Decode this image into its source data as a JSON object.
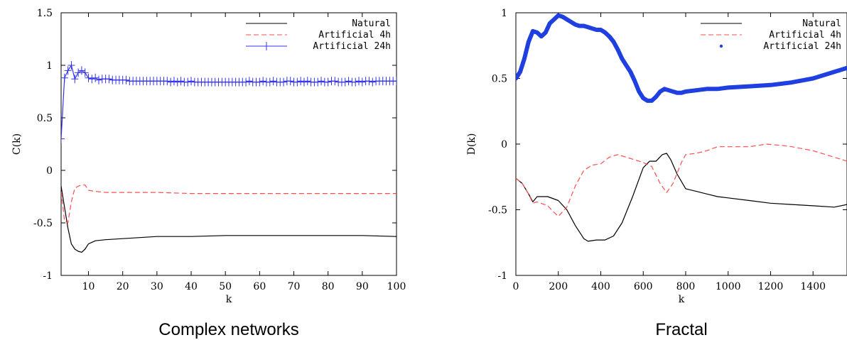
{
  "chart_data": [
    {
      "type": "line",
      "caption": "Complex networks",
      "xlabel": "k",
      "ylabel": "C(k)",
      "xlim": [
        2,
        100
      ],
      "ylim": [
        -1,
        1.5
      ],
      "xticks": [
        "10",
        "20",
        "30",
        "40",
        "50",
        "60",
        "70",
        "80",
        "90",
        "100"
      ],
      "yticks": [
        "-1",
        "-0.5",
        "0",
        "0.5",
        "1",
        "1.5"
      ],
      "grid": false,
      "legend_position": "top-right",
      "series": [
        {
          "name": "Natural",
          "color": "#000000",
          "style": "solid",
          "x": [
            2,
            3,
            4,
            5,
            6,
            7,
            8,
            9,
            10,
            12,
            15,
            20,
            25,
            30,
            40,
            50,
            60,
            70,
            80,
            90,
            100
          ],
          "y": [
            -0.15,
            -0.35,
            -0.55,
            -0.7,
            -0.75,
            -0.77,
            -0.78,
            -0.75,
            -0.7,
            -0.67,
            -0.66,
            -0.65,
            -0.64,
            -0.63,
            -0.63,
            -0.62,
            -0.62,
            -0.62,
            -0.62,
            -0.62,
            -0.63
          ]
        },
        {
          "name": "Artificial 4h",
          "color": "#ff4d4d",
          "style": "dashed",
          "x": [
            2,
            3,
            4,
            5,
            6,
            7,
            8,
            9,
            10,
            12,
            15,
            20,
            30,
            40,
            50,
            60,
            70,
            80,
            90,
            100
          ],
          "y": [
            -0.2,
            -0.48,
            -0.5,
            -0.3,
            -0.17,
            -0.15,
            -0.14,
            -0.14,
            -0.19,
            -0.2,
            -0.21,
            -0.21,
            -0.21,
            -0.22,
            -0.22,
            -0.22,
            -0.22,
            -0.22,
            -0.22,
            -0.22
          ]
        },
        {
          "name": "Artificial 24h",
          "color": "#3333ee",
          "style": "solid-plus-markers",
          "x": [
            2,
            3,
            4,
            5,
            6,
            7,
            8,
            9,
            10,
            11,
            12,
            13,
            14,
            15,
            16,
            17,
            18,
            19,
            20,
            21,
            22,
            23,
            24,
            25,
            26,
            27,
            28,
            29,
            30,
            31,
            32,
            33,
            34,
            35,
            36,
            37,
            38,
            39,
            40,
            41,
            42,
            43,
            44,
            45,
            46,
            47,
            48,
            49,
            50,
            51,
            52,
            53,
            54,
            55,
            56,
            57,
            58,
            59,
            60,
            61,
            62,
            63,
            64,
            65,
            66,
            67,
            68,
            69,
            70,
            71,
            72,
            73,
            74,
            75,
            76,
            77,
            78,
            79,
            80,
            81,
            82,
            83,
            84,
            85,
            86,
            87,
            88,
            89,
            90,
            91,
            92,
            93,
            94,
            95,
            96,
            97,
            98,
            99,
            100
          ],
          "y": [
            0.3,
            0.88,
            0.95,
            1.0,
            0.87,
            0.93,
            0.95,
            0.93,
            0.88,
            0.87,
            0.88,
            0.86,
            0.87,
            0.87,
            0.87,
            0.86,
            0.86,
            0.86,
            0.86,
            0.86,
            0.85,
            0.85,
            0.85,
            0.85,
            0.85,
            0.85,
            0.85,
            0.85,
            0.85,
            0.85,
            0.85,
            0.85,
            0.84,
            0.85,
            0.84,
            0.85,
            0.84,
            0.84,
            0.85,
            0.84,
            0.84,
            0.84,
            0.84,
            0.84,
            0.84,
            0.84,
            0.84,
            0.84,
            0.84,
            0.84,
            0.84,
            0.84,
            0.84,
            0.84,
            0.84,
            0.85,
            0.84,
            0.84,
            0.84,
            0.85,
            0.84,
            0.84,
            0.85,
            0.84,
            0.84,
            0.84,
            0.85,
            0.85,
            0.84,
            0.84,
            0.85,
            0.84,
            0.85,
            0.84,
            0.84,
            0.84,
            0.85,
            0.84,
            0.84,
            0.85,
            0.85,
            0.84,
            0.84,
            0.84,
            0.85,
            0.84,
            0.84,
            0.85,
            0.84,
            0.85,
            0.85,
            0.84,
            0.85,
            0.85,
            0.85,
            0.85,
            0.85,
            0.85,
            0.85
          ]
        }
      ]
    },
    {
      "type": "line",
      "caption": "Fractal",
      "xlabel": "k",
      "ylabel": "D(k)",
      "xlim": [
        0,
        1560
      ],
      "ylim": [
        -1,
        1
      ],
      "xticks": [
        "0",
        "200",
        "400",
        "600",
        "800",
        "1000",
        "1200",
        "1400"
      ],
      "yticks": [
        "-1",
        "-0.5",
        "0",
        "0.5",
        "1"
      ],
      "grid": false,
      "legend_position": "top-right",
      "series": [
        {
          "name": "Natural",
          "color": "#000000",
          "style": "solid",
          "x": [
            0,
            30,
            60,
            80,
            100,
            150,
            200,
            240,
            280,
            320,
            340,
            380,
            420,
            460,
            500,
            550,
            600,
            630,
            660,
            690,
            710,
            730,
            760,
            800,
            850,
            900,
            950,
            1000,
            1100,
            1200,
            1300,
            1400,
            1500,
            1560
          ],
          "y": [
            -0.26,
            -0.3,
            -0.38,
            -0.44,
            -0.4,
            -0.4,
            -0.43,
            -0.5,
            -0.62,
            -0.72,
            -0.74,
            -0.73,
            -0.73,
            -0.7,
            -0.6,
            -0.4,
            -0.18,
            -0.13,
            -0.13,
            -0.08,
            -0.07,
            -0.12,
            -0.23,
            -0.34,
            -0.36,
            -0.38,
            -0.4,
            -0.41,
            -0.43,
            -0.45,
            -0.46,
            -0.47,
            -0.48,
            -0.46
          ]
        },
        {
          "name": "Artificial 4h",
          "color": "#ff4d4d",
          "style": "dashed",
          "x": [
            0,
            30,
            60,
            80,
            100,
            150,
            180,
            200,
            240,
            280,
            320,
            360,
            400,
            440,
            480,
            520,
            560,
            600,
            640,
            680,
            710,
            740,
            780,
            800,
            850,
            900,
            950,
            1000,
            1100,
            1180,
            1250,
            1300,
            1400,
            1500,
            1560
          ],
          "y": [
            -0.26,
            -0.3,
            -0.38,
            -0.45,
            -0.44,
            -0.47,
            -0.52,
            -0.55,
            -0.48,
            -0.32,
            -0.2,
            -0.16,
            -0.15,
            -0.1,
            -0.08,
            -0.1,
            -0.12,
            -0.14,
            -0.17,
            -0.3,
            -0.37,
            -0.3,
            -0.14,
            -0.08,
            -0.07,
            -0.05,
            -0.02,
            -0.02,
            -0.02,
            0.0,
            -0.01,
            -0.02,
            -0.05,
            -0.1,
            -0.13
          ]
        },
        {
          "name": "Artificial 24h",
          "color": "#1f3fe0",
          "style": "thick-dotted",
          "x": [
            0,
            20,
            40,
            60,
            80,
            100,
            120,
            140,
            160,
            180,
            200,
            220,
            240,
            260,
            280,
            300,
            320,
            340,
            360,
            380,
            400,
            420,
            440,
            460,
            480,
            500,
            520,
            540,
            560,
            580,
            600,
            620,
            640,
            660,
            680,
            700,
            720,
            740,
            760,
            780,
            800,
            850,
            900,
            950,
            1000,
            1100,
            1200,
            1300,
            1400,
            1500,
            1560
          ],
          "y": [
            0.5,
            0.55,
            0.65,
            0.78,
            0.86,
            0.85,
            0.82,
            0.85,
            0.92,
            0.95,
            0.98,
            0.97,
            0.95,
            0.93,
            0.91,
            0.9,
            0.9,
            0.89,
            0.88,
            0.87,
            0.87,
            0.85,
            0.82,
            0.78,
            0.72,
            0.65,
            0.6,
            0.55,
            0.48,
            0.4,
            0.35,
            0.33,
            0.33,
            0.36,
            0.4,
            0.42,
            0.41,
            0.4,
            0.39,
            0.39,
            0.4,
            0.41,
            0.42,
            0.42,
            0.43,
            0.44,
            0.45,
            0.47,
            0.5,
            0.55,
            0.58
          ]
        }
      ]
    }
  ]
}
